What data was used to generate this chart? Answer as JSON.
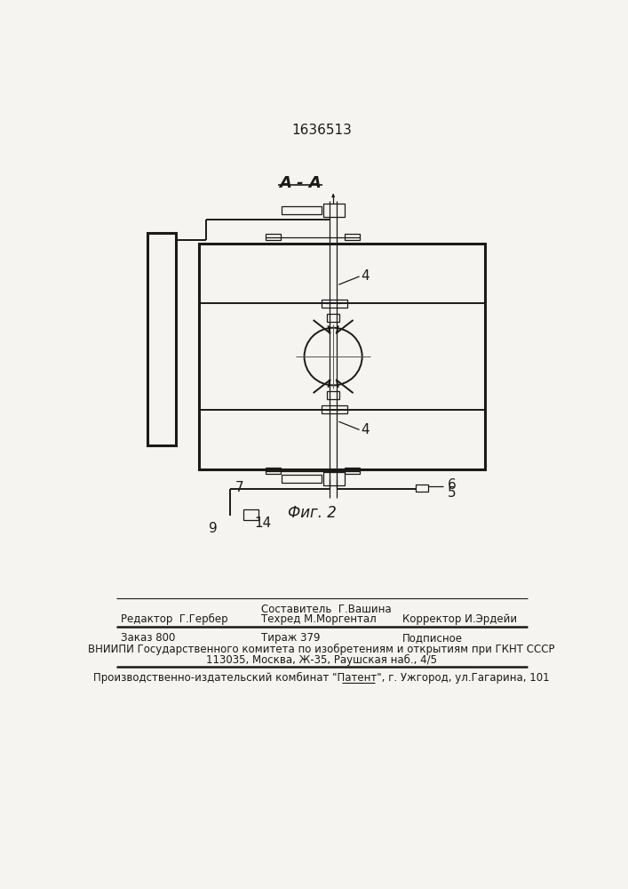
{
  "patent_number": "1636513",
  "section_label": "А - А",
  "fig_label": "Фиг. 2",
  "bg_color": "#f5f4f0",
  "drawing_color": "#1a1a1a",
  "footer": {
    "editor_label": "Редактор  Г.Гербер",
    "line1_col1": "Составитель  Г.Вашина",
    "line2_col1": "Техред М.Моргентал",
    "line2_col2": "Корректор И.Эрдейи",
    "order": "Заказ 800",
    "circulation": "Тираж 379",
    "subscription": "Подписное",
    "vniip_line": "ВНИИПИ Государственного комитета по изобретениям и открытиям при ГКНТ СССР",
    "address_line": "113035, Москва, Ж-35, Раушская наб., 4/5",
    "plant_line": "Производственно-издательский комбинат \"Патент\", г. Ужгород, ул.Гагарина, 101"
  }
}
